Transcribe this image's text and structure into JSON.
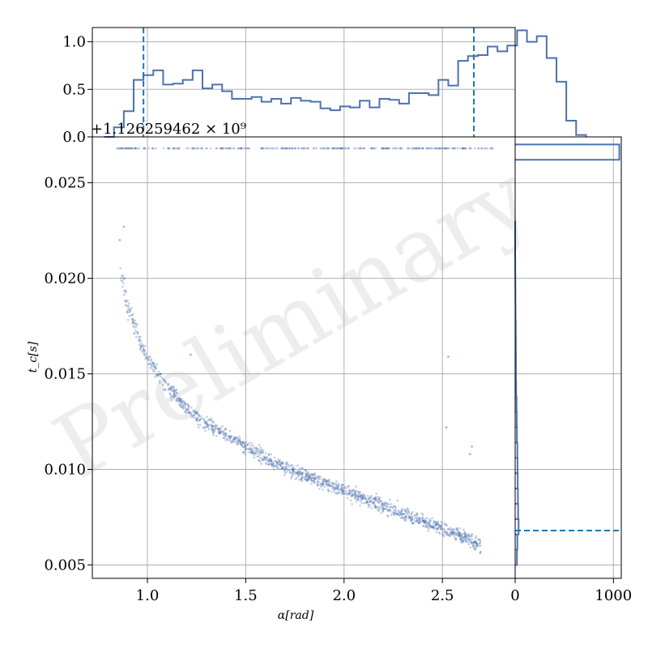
{
  "chart_data": {
    "type": "scatter",
    "watermark": "Preliminary",
    "main": {
      "xlabel": "α[rad]",
      "ylabel": "t_c[s]",
      "y_offset_label": "+1.126259462 × 10⁹",
      "xlim": [
        0.72,
        2.87
      ],
      "ylim": [
        0.0043,
        0.0274
      ],
      "xticks": [
        1.0,
        1.5,
        2.0,
        2.5
      ],
      "xtick_labels": [
        "1.0",
        "1.5",
        "2.0",
        "2.5"
      ],
      "yticks": [
        0.005,
        0.01,
        0.015,
        0.02,
        0.025
      ],
      "ytick_labels": [
        "0.005",
        "0.010",
        "0.015",
        "0.020",
        "0.025"
      ],
      "grid": true,
      "series_color": "#4c72b0",
      "trend": {
        "x": [
          0.86,
          0.9,
          0.95,
          1.0,
          1.1,
          1.2,
          1.3,
          1.4,
          1.5,
          1.6,
          1.7,
          1.8,
          1.9,
          2.0,
          2.1,
          2.2,
          2.3,
          2.4,
          2.5,
          2.6,
          2.7
        ],
        "y": [
          0.0205,
          0.0185,
          0.017,
          0.0158,
          0.0143,
          0.0132,
          0.0124,
          0.0118,
          0.0112,
          0.0106,
          0.0101,
          0.0097,
          0.0093,
          0.0089,
          0.0085,
          0.0081,
          0.0077,
          0.0073,
          0.0069,
          0.0065,
          0.006
        ]
      },
      "upper_band": {
        "y": 0.0268,
        "x_range": [
          0.84,
          2.77
        ]
      },
      "outliers": [
        {
          "x": 0.86,
          "y": 0.022
        },
        {
          "x": 0.88,
          "y": 0.0227
        },
        {
          "x": 1.22,
          "y": 0.016
        },
        {
          "x": 2.52,
          "y": 0.0122
        },
        {
          "x": 2.53,
          "y": 0.0159
        },
        {
          "x": 2.64,
          "y": 0.0108
        },
        {
          "x": 2.65,
          "y": 0.0112
        }
      ]
    },
    "top_histogram": {
      "ylim": [
        0,
        1.15
      ],
      "yticks": [
        0.0,
        0.5,
        1.0
      ],
      "ytick_labels": [
        "0.0",
        "0.5",
        "1.0"
      ],
      "bin_start": 0.78,
      "bin_width": 0.05,
      "densities": [
        0.0,
        0.1,
        0.27,
        0.6,
        0.65,
        0.7,
        0.55,
        0.56,
        0.6,
        0.7,
        0.51,
        0.55,
        0.48,
        0.4,
        0.4,
        0.42,
        0.37,
        0.4,
        0.35,
        0.41,
        0.38,
        0.37,
        0.3,
        0.28,
        0.32,
        0.31,
        0.38,
        0.31,
        0.4,
        0.39,
        0.35,
        0.46,
        0.46,
        0.44,
        0.6,
        0.54,
        0.8,
        0.85,
        0.86,
        0.95,
        0.9,
        0.96,
        1.12,
        1.0,
        1.06,
        0.83,
        0.58,
        0.17,
        0.02
      ],
      "quantile_lines": [
        0.98,
        2.66
      ]
    },
    "right_histogram": {
      "xlim": [
        0,
        1080
      ],
      "xticks": [
        0,
        1000
      ],
      "xtick_labels": [
        "0",
        "1000"
      ],
      "bins": [
        {
          "y0": 0.005,
          "y1": 0.0058,
          "count": 18
        },
        {
          "y0": 0.0058,
          "y1": 0.0066,
          "count": 22
        },
        {
          "y0": 0.0066,
          "y1": 0.0074,
          "count": 35
        },
        {
          "y0": 0.0074,
          "y1": 0.0082,
          "count": 30
        },
        {
          "y0": 0.0082,
          "y1": 0.009,
          "count": 28
        },
        {
          "y0": 0.009,
          "y1": 0.0098,
          "count": 26
        },
        {
          "y0": 0.0098,
          "y1": 0.0106,
          "count": 24
        },
        {
          "y0": 0.0106,
          "y1": 0.0114,
          "count": 22
        },
        {
          "y0": 0.0114,
          "y1": 0.0122,
          "count": 18
        },
        {
          "y0": 0.0122,
          "y1": 0.013,
          "count": 16
        },
        {
          "y0": 0.013,
          "y1": 0.0138,
          "count": 14
        },
        {
          "y0": 0.0138,
          "y1": 0.0146,
          "count": 10
        },
        {
          "y0": 0.0146,
          "y1": 0.0154,
          "count": 8
        },
        {
          "y0": 0.0154,
          "y1": 0.0162,
          "count": 8
        },
        {
          "y0": 0.0162,
          "y1": 0.017,
          "count": 7
        },
        {
          "y0": 0.017,
          "y1": 0.0178,
          "count": 6
        },
        {
          "y0": 0.0178,
          "y1": 0.0186,
          "count": 4
        },
        {
          "y0": 0.0186,
          "y1": 0.0194,
          "count": 3
        },
        {
          "y0": 0.0194,
          "y1": 0.0202,
          "count": 2
        },
        {
          "y0": 0.0202,
          "y1": 0.021,
          "count": 1
        },
        {
          "y0": 0.021,
          "y1": 0.023,
          "count": 0
        },
        {
          "y0": 0.0262,
          "y1": 0.027,
          "count": 1060
        }
      ],
      "quantile_lines": [
        0.0068
      ]
    }
  }
}
